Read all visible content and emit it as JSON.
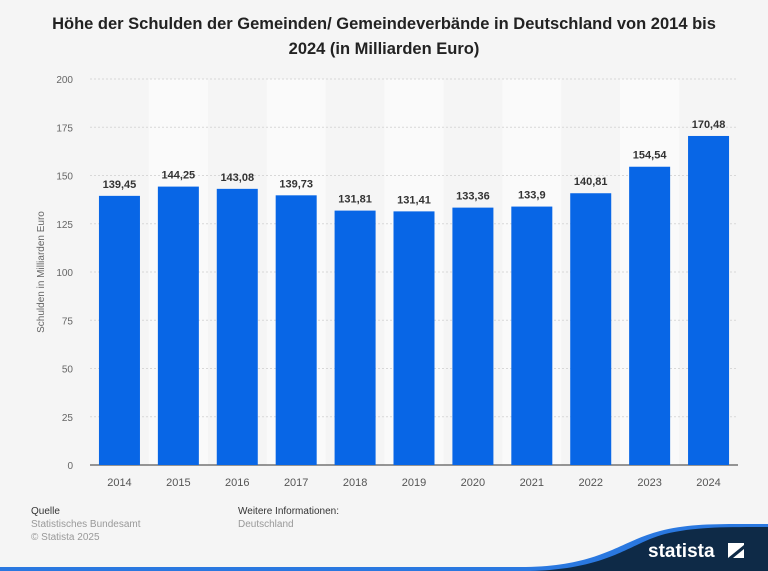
{
  "chart_data": {
    "type": "bar",
    "title": "Höhe der Schulden der Gemeinden/ Gemeindeverbände in Deutschland von 2014 bis 2024 (in Milliarden Euro)",
    "categories": [
      "2014",
      "2015",
      "2016",
      "2017",
      "2018",
      "2019",
      "2020",
      "2021",
      "2022",
      "2023",
      "2024"
    ],
    "values": [
      139.45,
      144.25,
      143.08,
      139.73,
      131.81,
      131.41,
      133.36,
      133.9,
      140.81,
      154.54,
      170.48
    ],
    "data_labels": [
      "139,45",
      "144,25",
      "143,08",
      "139,73",
      "131,81",
      "131,41",
      "133,36",
      "133,9",
      "140,81",
      "154,54",
      "170,48"
    ],
    "xlabel": "",
    "ylabel": "Schulden in Milliarden Euro",
    "ylim": [
      0,
      200
    ],
    "yticks": [
      "0",
      "25",
      "50",
      "75",
      "100",
      "125",
      "150",
      "175",
      "200"
    ],
    "grid": true,
    "bar_color": "#0866e6"
  },
  "footer": {
    "source_heading": "Quelle",
    "source": "Statistisches Bundesamt",
    "copyright": "© Statista 2025",
    "info_heading": "Weitere Informationen:",
    "info": "Deutschland",
    "logo": "statista"
  }
}
